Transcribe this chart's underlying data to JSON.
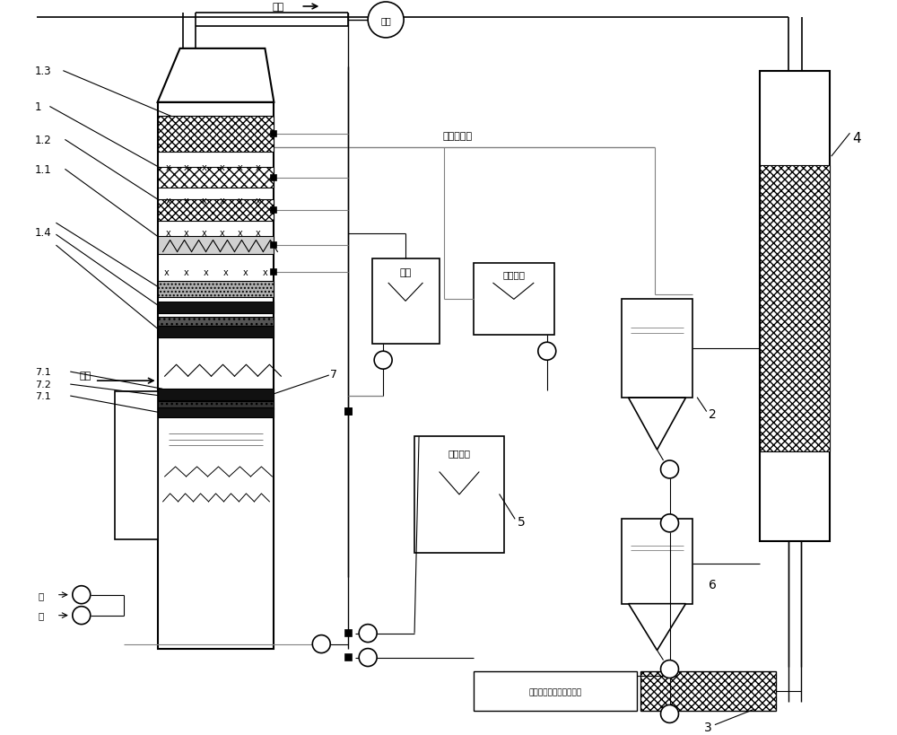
{
  "bg_color": "#ffffff",
  "line_color": "#000000",
  "labels": {
    "flue_out": "烟气",
    "chimney": "烟囱",
    "water": "补充工艺水",
    "oxalic": "草酸",
    "circ": "循环水箱",
    "ammonia": "补充氨水",
    "recovery": "进硫酸铵副产品回收系统",
    "flue_in": "烟气",
    "air1": "空",
    "air2": "气",
    "n1": "1",
    "n13": "1.3",
    "n12": "1.2",
    "n11": "1.1",
    "n14": "1.4",
    "n2": "2",
    "n3": "3",
    "n4": "4",
    "n5": "5",
    "n6": "6",
    "n7": "7",
    "n71a": "7.1",
    "n72": "7.2",
    "n71b": "7.1"
  }
}
